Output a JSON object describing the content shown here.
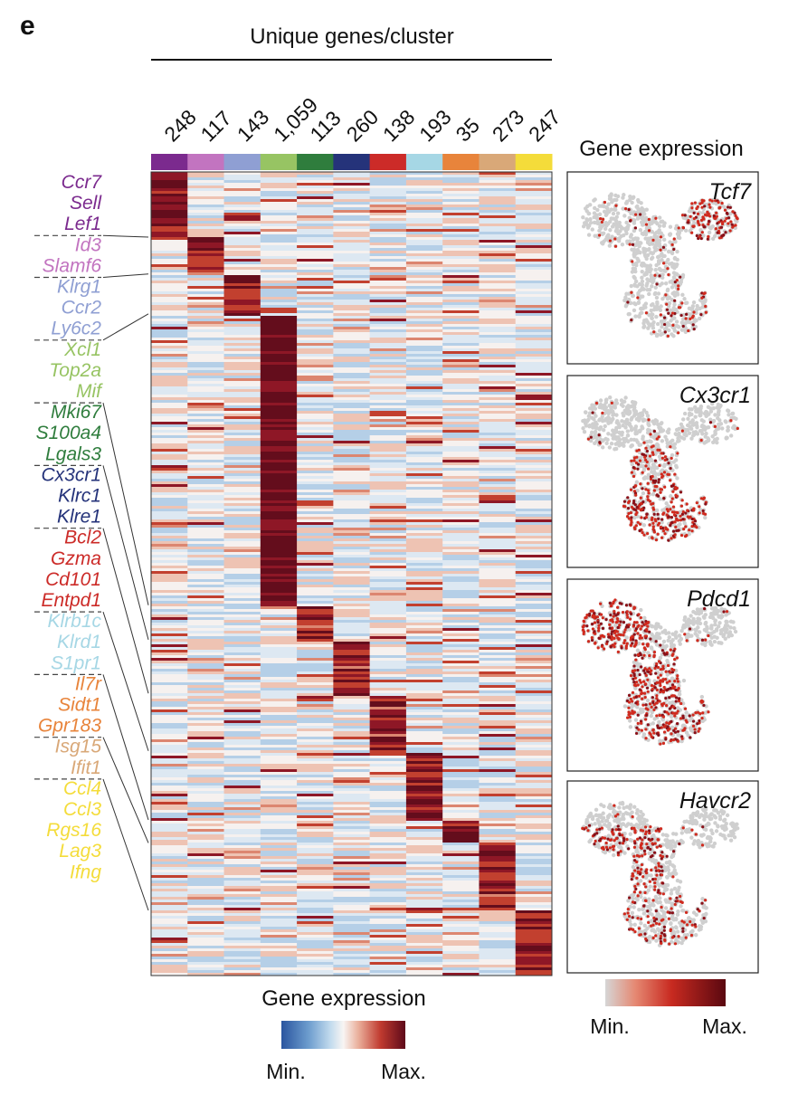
{
  "panel_letter": "e",
  "colors": {
    "clusters": [
      "#7b2a8e",
      "#c274c0",
      "#8f9fd3",
      "#97c463",
      "#2f7d3d",
      "#25337a",
      "#cc2b28",
      "#a6d7e5",
      "#e8843b",
      "#d9a878",
      "#f4dc3a"
    ],
    "heatmap_scale": [
      "#2f5ea8",
      "#6f9fcf",
      "#b8d0e8",
      "#f7f3f1",
      "#e8a996",
      "#c24a3a",
      "#6b0f1e"
    ],
    "umap_scale": [
      "#d3d3d3",
      "#e37f6b",
      "#c62a20",
      "#5e0a12"
    ],
    "umap_background": "#cfcfcf"
  },
  "chart_data": [
    {
      "type": "heatmap",
      "title": "Unique genes/cluster",
      "categories": [
        "248",
        "117",
        "143",
        "1,059",
        "113",
        "260",
        "138",
        "193",
        "35",
        "273",
        "247"
      ],
      "unique_genes_per_cluster": [
        248,
        117,
        143,
        1059,
        113,
        260,
        138,
        193,
        35,
        273,
        247
      ],
      "gene_groups": [
        {
          "genes": [
            "Ccr7",
            "Sell",
            "Lef1"
          ]
        },
        {
          "genes": [
            "Id3",
            "Slamf6"
          ]
        },
        {
          "genes": [
            "Klrg1",
            "Ccr2",
            "Ly6c2"
          ]
        },
        {
          "genes": [
            "Xcl1",
            "Top2a",
            "Mif"
          ]
        },
        {
          "genes": [
            "Mki67",
            "S100a4",
            "Lgals3"
          ]
        },
        {
          "genes": [
            "Cx3cr1",
            "Klrc1",
            "Klre1"
          ]
        },
        {
          "genes": [
            "Bcl2",
            "Gzma",
            "Cd101",
            "Entpd1"
          ]
        },
        {
          "genes": [
            "Klrb1c",
            "Klrd1",
            "S1pr1"
          ]
        },
        {
          "genes": [
            "Il7r",
            "Sidt1",
            "Gpr183"
          ]
        },
        {
          "genes": [
            "Isg15",
            "Ifit1"
          ]
        },
        {
          "genes": [
            "Ccl4",
            "Ccl3",
            "Rgs16",
            "Lag3",
            "Ifng"
          ]
        }
      ],
      "legend": {
        "title": "Gene expression",
        "min_label": "Min.",
        "max_label": "Max."
      }
    },
    {
      "type": "scatter",
      "title": "Gene expression",
      "panels": [
        "Tcf7",
        "Cx3cr1",
        "Pdcd1",
        "Havcr2"
      ],
      "legend": {
        "min_label": "Min.",
        "max_label": "Max."
      }
    }
  ]
}
